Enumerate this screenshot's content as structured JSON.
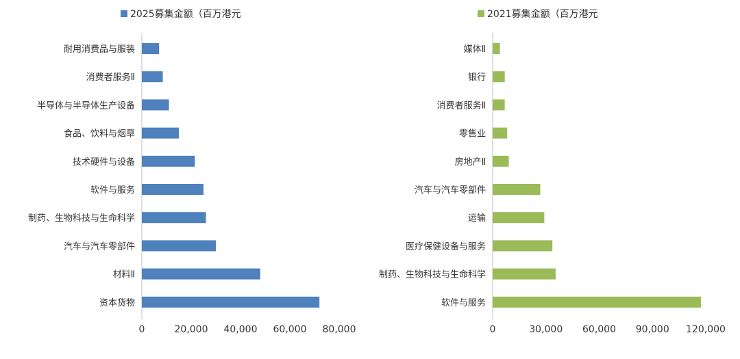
{
  "chart_data": [
    {
      "type": "bar",
      "orientation": "horizontal",
      "legend": "2025募集金额（百万港元",
      "legend_position": "top",
      "color": "#4f81bd",
      "categories": [
        "耐用消费品与服装",
        "消费者服务Ⅱ",
        "半导体与半导体生产设备",
        "食品、饮料与烟草",
        "技术硬件与设备",
        "软件与服务",
        "制药、生物科技与生命科学",
        "汽车与汽车零部件",
        "材料Ⅱ",
        "资本货物"
      ],
      "values": [
        7000,
        8500,
        11000,
        15000,
        21500,
        25000,
        26000,
        30000,
        48000,
        72000
      ],
      "xlim": [
        0,
        80000
      ],
      "xticks": [
        "0",
        "20,000",
        "40,000",
        "60,000",
        "80,000"
      ],
      "grid": false
    },
    {
      "type": "bar",
      "orientation": "horizontal",
      "legend": "2021募集金额（百万港元",
      "legend_position": "top",
      "color": "#9bbb59",
      "categories": [
        "媒体Ⅱ",
        "银行",
        "消费者服务Ⅱ",
        "零售业",
        "房地产Ⅱ",
        "汽车与汽车零部件",
        "运输",
        "医疗保健设备与服务",
        "制药、生物科技与生命科学",
        "软件与服务"
      ],
      "values": [
        4500,
        7500,
        7500,
        9000,
        10000,
        29500,
        32000,
        37000,
        39000,
        129000
      ],
      "xlim": [
        0,
        132000
      ],
      "xticks": [
        "0",
        "30,000",
        "60,000",
        "90,000",
        "120,000"
      ],
      "grid": false
    }
  ]
}
